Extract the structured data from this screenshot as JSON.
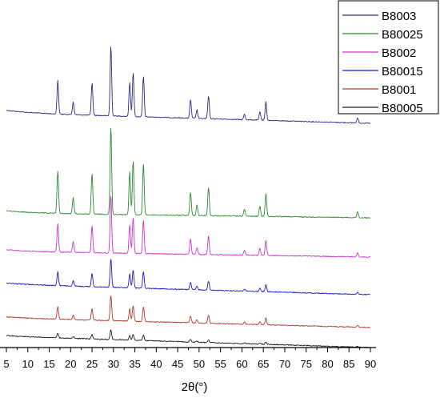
{
  "chart_data": {
    "type": "line",
    "title": "",
    "xlabel": "2θ(°)",
    "ylabel": "",
    "xlim": [
      5,
      90
    ],
    "x_ticks": [
      "5",
      "10",
      "15",
      "20",
      "25",
      "30",
      "35",
      "40",
      "45",
      "50",
      "55",
      "60",
      "65",
      "70",
      "75",
      "80",
      "85",
      "90"
    ],
    "grid": false,
    "legend_position": "top-right",
    "y_axis_visible": false,
    "peak_positions_2theta": [
      17.0,
      20.6,
      25.0,
      29.4,
      33.8,
      34.6,
      37.0,
      48.0,
      49.5,
      52.2,
      60.6,
      64.2,
      65.6,
      87.0
    ],
    "series": [
      {
        "name": "B8003",
        "color": "#2b2b8c",
        "offset": 5,
        "baseline_start": 0.55,
        "relative_intensity": 1.0,
        "peak_heights": [
          0.48,
          0.18,
          0.46,
          1.0,
          0.48,
          0.62,
          0.58,
          0.26,
          0.12,
          0.32,
          0.08,
          0.12,
          0.26,
          0.07
        ]
      },
      {
        "name": "B80025",
        "color": "#2e8b2e",
        "offset": 4,
        "baseline_start": 0.45,
        "relative_intensity": 1.1,
        "peak_heights": [
          0.48,
          0.18,
          0.46,
          1.0,
          0.48,
          0.62,
          0.58,
          0.26,
          0.12,
          0.32,
          0.08,
          0.12,
          0.26,
          0.07
        ]
      },
      {
        "name": "B8002",
        "color": "#cc33cc",
        "offset": 3,
        "baseline_start": 0.35,
        "relative_intensity": 1.05,
        "peak_heights": [
          0.48,
          0.18,
          0.46,
          1.0,
          0.48,
          0.62,
          0.58,
          0.26,
          0.12,
          0.32,
          0.08,
          0.12,
          0.26,
          0.07
        ]
      },
      {
        "name": "B80015",
        "color": "#1a1acc",
        "offset": 2,
        "baseline_start": 0.25,
        "relative_intensity": 0.55,
        "peak_heights": [
          0.48,
          0.18,
          0.46,
          1.0,
          0.48,
          0.62,
          0.58,
          0.26,
          0.12,
          0.32,
          0.08,
          0.12,
          0.26,
          0.07
        ]
      },
      {
        "name": "B8001",
        "color": "#b03a2e",
        "offset": 1,
        "baseline_start": 0.2,
        "relative_intensity": 0.5,
        "peak_heights": [
          0.48,
          0.18,
          0.46,
          1.0,
          0.48,
          0.62,
          0.58,
          0.26,
          0.12,
          0.32,
          0.08,
          0.12,
          0.26,
          0.07
        ]
      },
      {
        "name": "B80005",
        "color": "#1a1a1a",
        "offset": 0,
        "baseline_start": 0.15,
        "relative_intensity": 0.12,
        "peak_heights": [
          0.48,
          0.18,
          0.46,
          1.0,
          0.48,
          0.62,
          0.58,
          0.26,
          0.12,
          0.32,
          0.08,
          0.12,
          0.26,
          0.07
        ]
      }
    ]
  }
}
